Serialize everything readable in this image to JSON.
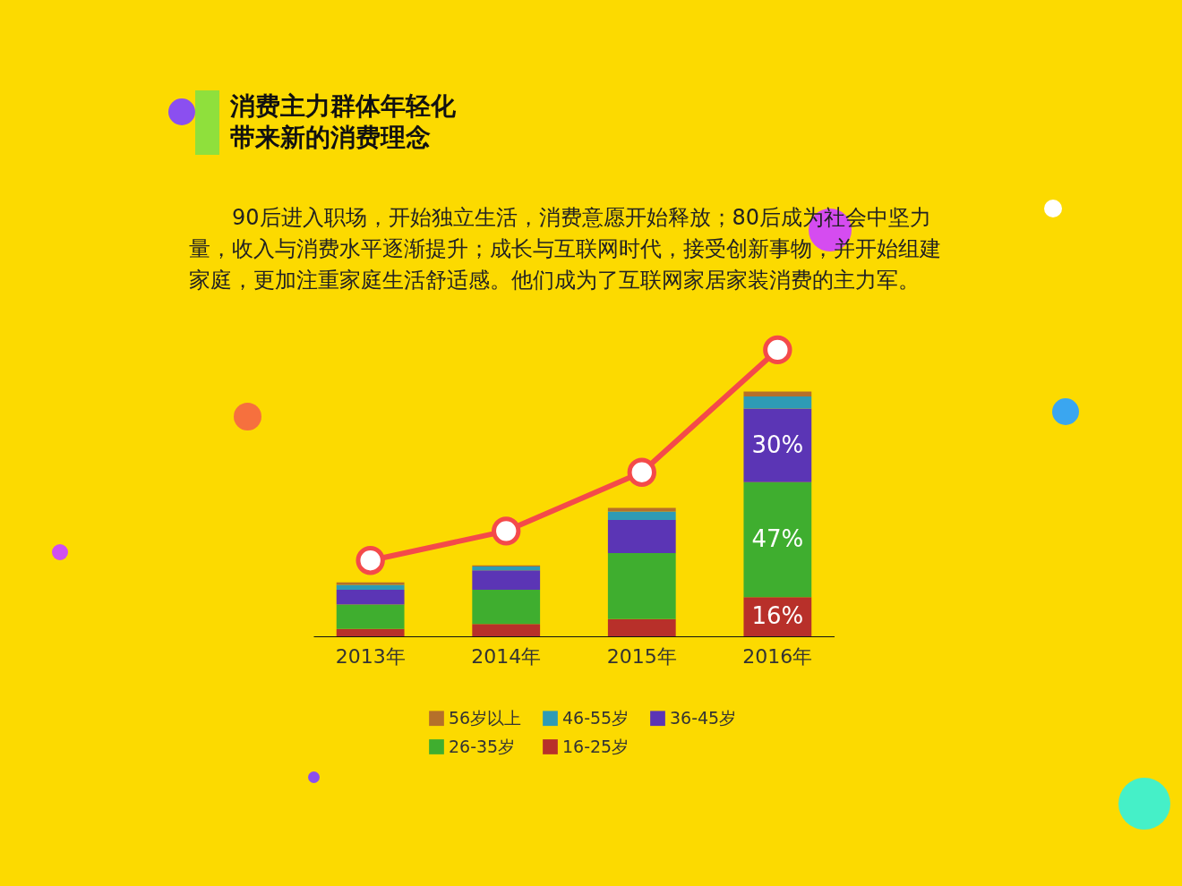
{
  "chart_data": {
    "type": "bar",
    "title": "消费主力群体年轻化带来新的消费理念",
    "subtitle": "90后进入职场，开始独立生活，消费意愿开始释放；80后成为社会中坚力量，收入与消费水平逐渐提升；成长与互联网时代，接受创新事物，并开始组建家庭，更加注重家庭生活舒适感。他们成为了互联网家居家装消费的主力军。",
    "categories": [
      "2013年",
      "2014年",
      "2015年",
      "2016年"
    ],
    "stacked": true,
    "legend": "bottom",
    "marker": "circle",
    "series": [
      {
        "name": "16-25岁",
        "color": "#b8302a",
        "values": [
          3,
          5,
          7,
          16
        ],
        "value_labels": [
          null,
          null,
          null,
          "16%"
        ]
      },
      {
        "name": "26-35岁",
        "color": "#3fae2f",
        "values": [
          10,
          14,
          27,
          47
        ],
        "value_labels": [
          null,
          null,
          null,
          "47%"
        ]
      },
      {
        "name": "36-45岁",
        "color": "#5b35b5",
        "values": [
          6,
          8,
          13.5,
          30
        ],
        "value_labels": [
          null,
          null,
          null,
          "30%"
        ]
      },
      {
        "name": "46-55岁",
        "color": "#2e9bb5",
        "values": [
          2,
          1.5,
          3.5,
          5
        ]
      },
      {
        "name": "56岁以上",
        "color": "#b5702a",
        "values": [
          1,
          0.5,
          1.5,
          2
        ]
      },
      {
        "type": "line",
        "color": "#f44a4a",
        "values": [
          31,
          43,
          67,
          117
        ]
      }
    ]
  }
}
